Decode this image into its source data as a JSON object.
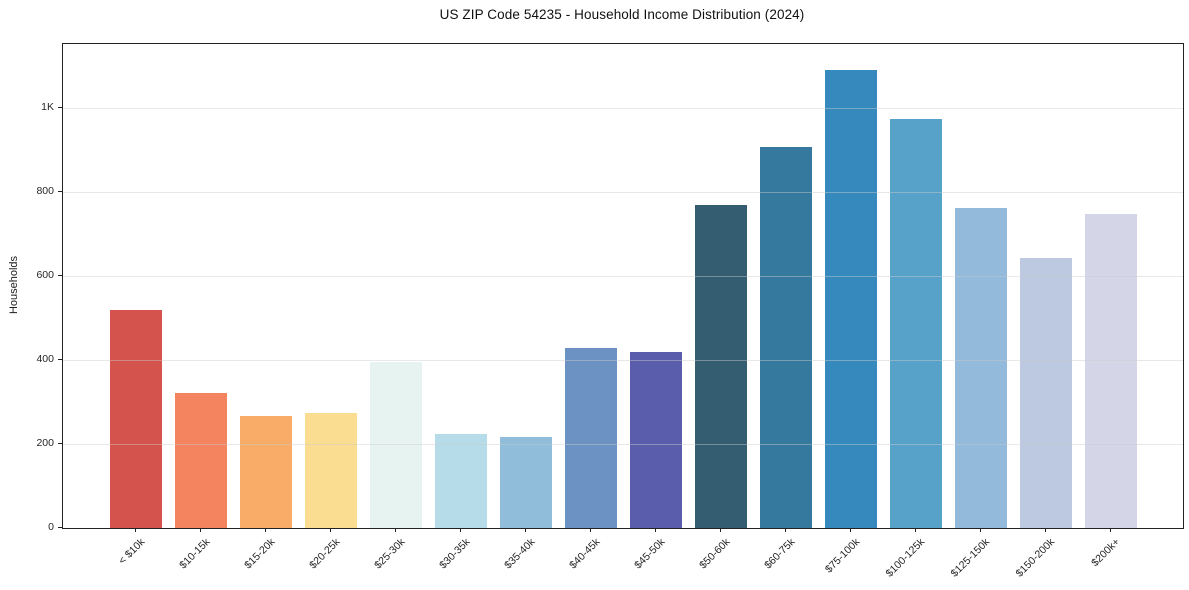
{
  "chart_data": {
    "type": "bar",
    "title": "US ZIP Code 54235 - Household Income Distribution (2024)",
    "xlabel": "",
    "ylabel": "Households",
    "categories": [
      "< $10k",
      "$10-15k",
      "$15-20k",
      "$20-25k",
      "$25-30k",
      "$30-35k",
      "$35-40k",
      "$40-45k",
      "$45-50k",
      "$50-60k",
      "$60-75k",
      "$75-100k",
      "$100-125k",
      "$125-150k",
      "$150-200k",
      "$200k+"
    ],
    "values": [
      520,
      322,
      267,
      275,
      395,
      224,
      218,
      430,
      420,
      770,
      908,
      1092,
      974,
      762,
      643,
      748
    ],
    "bar_colors": [
      "#d5534d",
      "#f4845f",
      "#f8ac67",
      "#fbdd92",
      "#e7f3f1",
      "#b6dbe9",
      "#90bdda",
      "#6c92c3",
      "#5a5dab",
      "#355d71",
      "#35799e",
      "#3589bd",
      "#57a2c8",
      "#93badb",
      "#bcc9e1",
      "#d4d6e8"
    ],
    "ylim": [
      0,
      1153
    ],
    "yticks": [
      {
        "value": 0,
        "label": "0"
      },
      {
        "value": 200,
        "label": "200"
      },
      {
        "value": 400,
        "label": "400"
      },
      {
        "value": 600,
        "label": "600"
      },
      {
        "value": 800,
        "label": "800"
      },
      {
        "value": 1000,
        "label": "1K"
      }
    ],
    "grid": "horizontal",
    "legend": "none",
    "spines": "box"
  }
}
